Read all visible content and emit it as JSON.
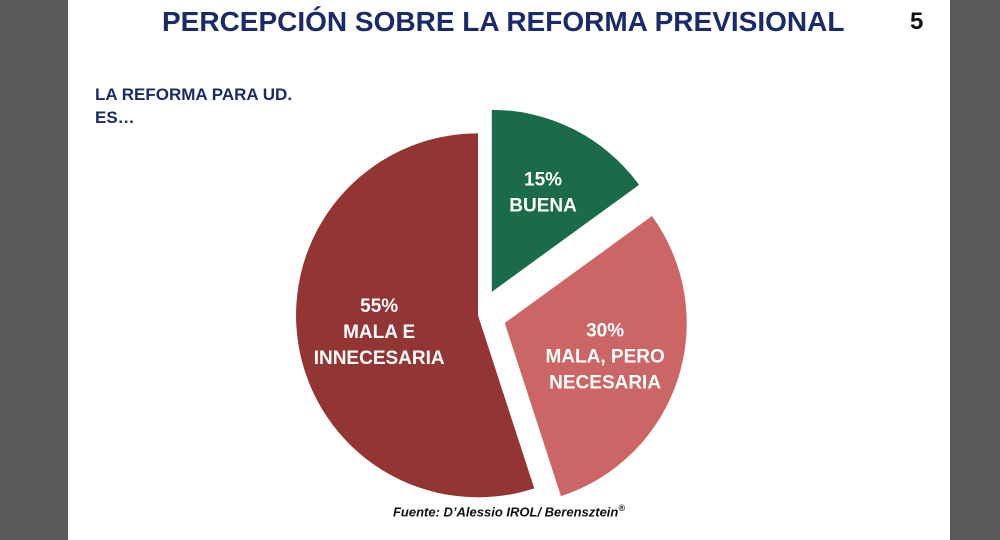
{
  "slide": {
    "title": "PERCEPCIÓN SOBRE LA REFORMA PREVISIONAL",
    "page_number": "5",
    "question_line1": "LA REFORMA PARA UD.",
    "question_line2": "ES…",
    "source": "Fuente: D’Alessio IROL/ Berensztein",
    "source_mark": "®"
  },
  "colors": {
    "title": "#1b2a6b",
    "buena": "#1b6b4a",
    "mala_pero_necesaria": "#cc6666",
    "mala_e_innecesaria": "#943535",
    "background": "#595959"
  },
  "chart_data": {
    "type": "pie",
    "title": "",
    "start_angle_deg": 0,
    "direction": "clockwise",
    "exploded": true,
    "slices": [
      {
        "value": 15,
        "pct_label": "15%",
        "lines": [
          "BUENA"
        ],
        "color": "#1b6b4a"
      },
      {
        "value": 30,
        "pct_label": "30%",
        "lines": [
          "MALA, PERO",
          "NECESARIA"
        ],
        "color": "#cc6666"
      },
      {
        "value": 55,
        "pct_label": "55%",
        "lines": [
          "MALA E",
          "INNECESARIA"
        ],
        "color": "#943535"
      }
    ]
  }
}
